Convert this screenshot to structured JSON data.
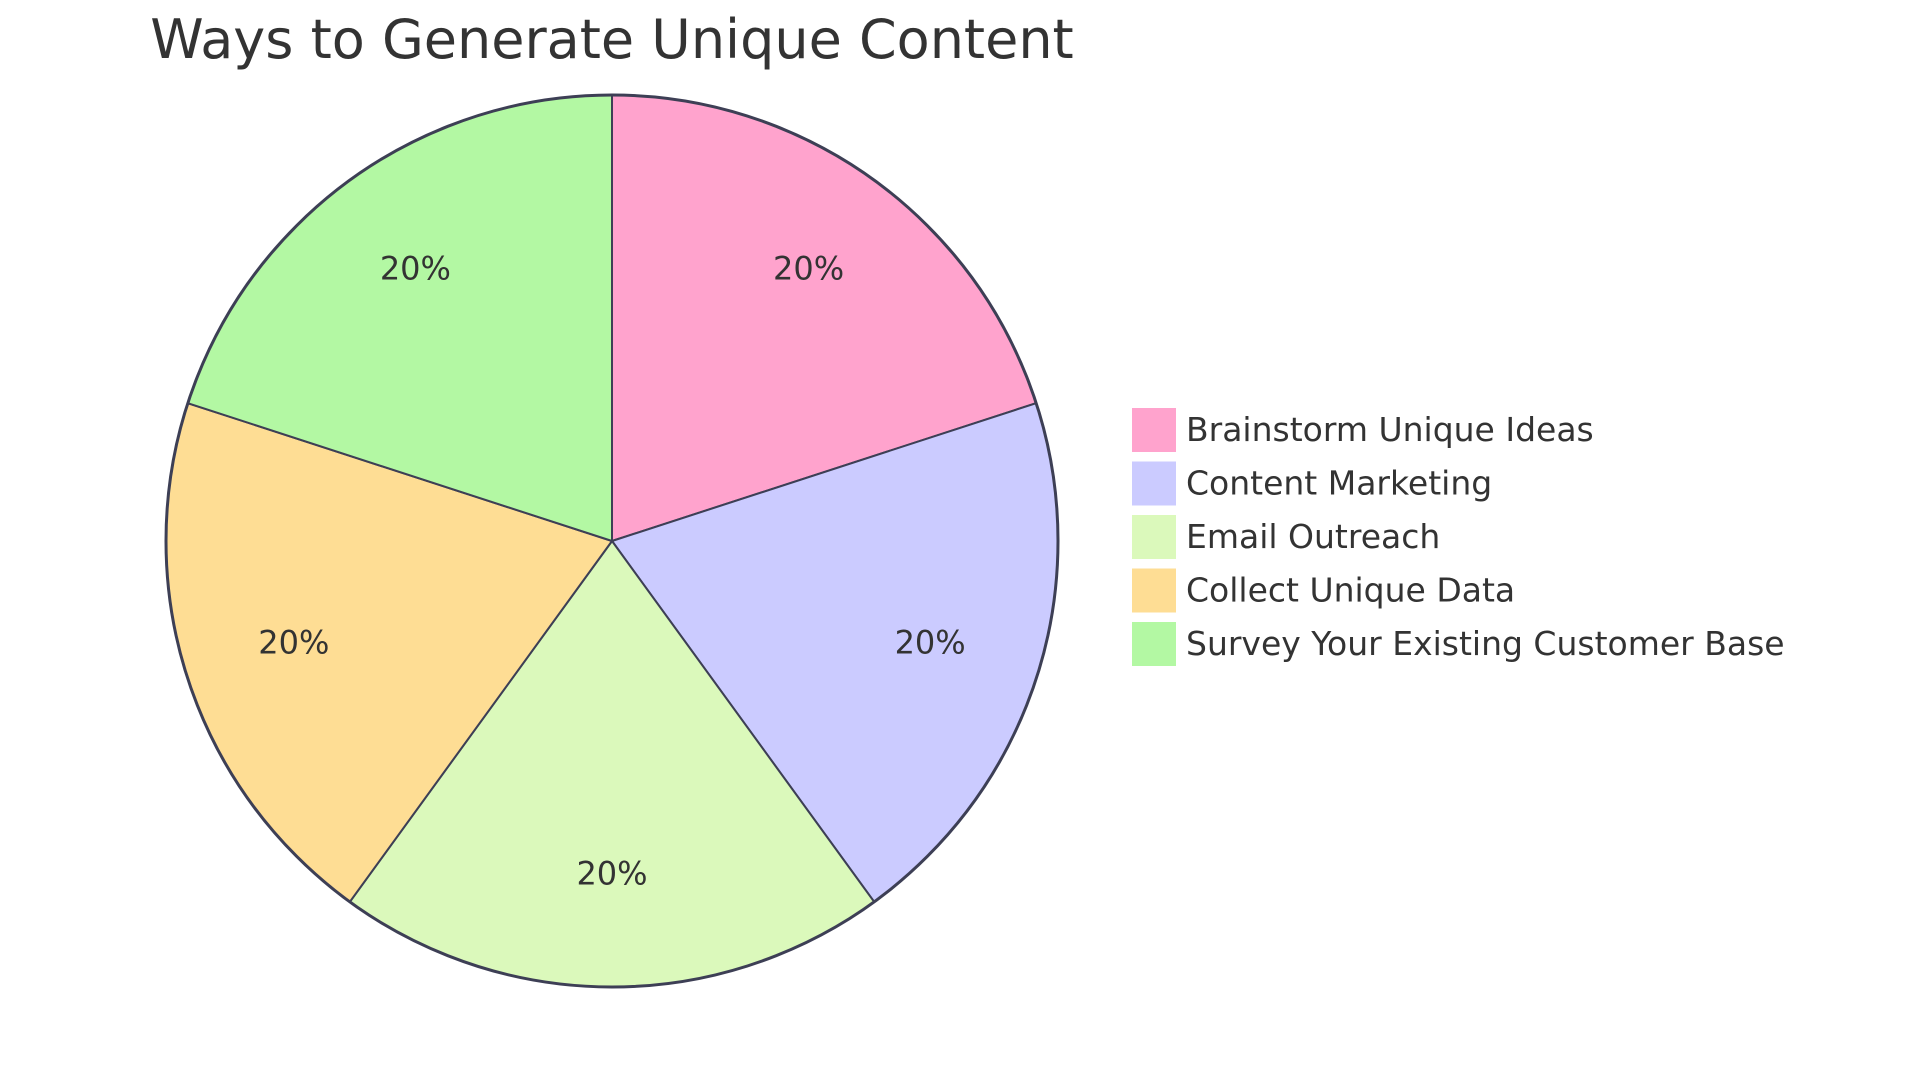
{
  "chart_data": {
    "type": "pie",
    "title": "Ways to Generate Unique Content",
    "categories": [
      "Brainstorm Unique Ideas",
      "Content Marketing",
      "Email Outreach",
      "Collect Unique Data",
      "Survey Your Existing Customer Base"
    ],
    "values": [
      20,
      20,
      20,
      20,
      20
    ],
    "labels": [
      "20%",
      "20%",
      "20%",
      "20%",
      "20%"
    ],
    "colors": [
      "#FFA3CD",
      "#CBCBFF",
      "#DBF9BB",
      "#FEDD94",
      "#B3F8A3"
    ],
    "outline_color": "#3D3F55",
    "start": "top",
    "direction": "clockwise",
    "legend": {
      "position": "right"
    }
  }
}
